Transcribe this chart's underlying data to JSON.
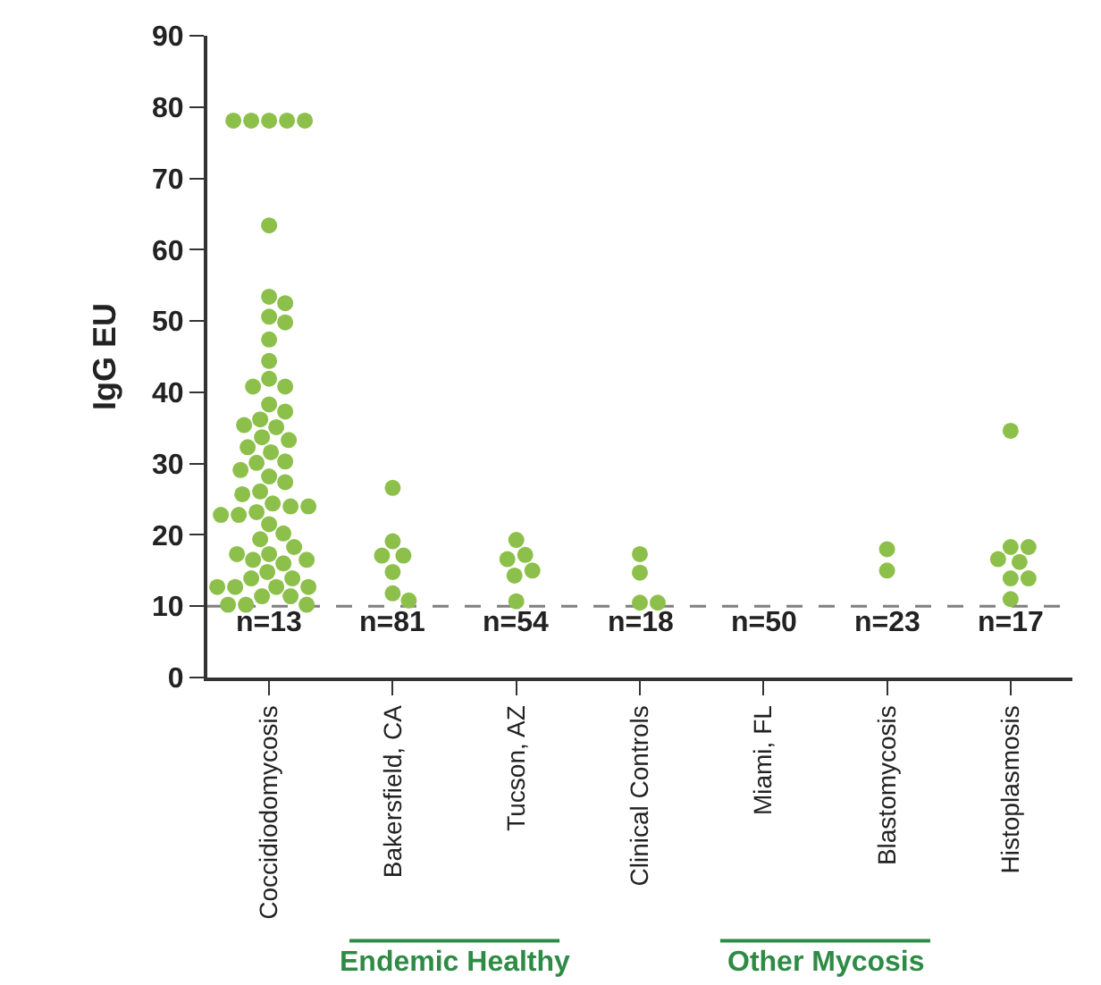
{
  "chart_data": {
    "type": "scatter",
    "ylabel": "IgG EU",
    "categories": [
      "Coccidiodomycosis",
      "Bakersfield, CA",
      "Tucson, AZ",
      "Clinical Controls",
      "Miami, FL",
      "Blastomycosis",
      "Histoplasmosis"
    ],
    "series": [
      {
        "color": "#8dc04a",
        "x": [
          "Coccidiodomycosis",
          "Coccidiodomycosis",
          "Coccidiodomycosis",
          "Coccidiodomycosis",
          "Coccidiodomycosis",
          "Coccidiodomycosis",
          "Coccidiodomycosis",
          "Coccidiodomycosis",
          "Coccidiodomycosis",
          "Coccidiodomycosis",
          "Coccidiodomycosis",
          "Coccidiodomycosis",
          "Coccidiodomycosis",
          "Coccidiodomycosis",
          "Coccidiodomycosis",
          "Coccidiodomycosis",
          "Coccidiodomycosis",
          "Coccidiodomycosis",
          "Coccidiodomycosis",
          "Coccidiodomycosis",
          "Coccidiodomycosis",
          "Coccidiodomycosis",
          "Coccidiodomycosis",
          "Coccidiodomycosis",
          "Coccidiodomycosis",
          "Coccidiodomycosis",
          "Coccidiodomycosis",
          "Coccidiodomycosis",
          "Coccidiodomycosis",
          "Coccidiodomycosis",
          "Coccidiodomycosis",
          "Coccidiodomycosis",
          "Coccidiodomycosis",
          "Coccidiodomycosis",
          "Coccidiodomycosis",
          "Coccidiodomycosis",
          "Coccidiodomycosis",
          "Coccidiodomycosis",
          "Coccidiodomycosis",
          "Coccidiodomycosis",
          "Coccidiodomycosis",
          "Coccidiodomycosis",
          "Coccidiodomycosis",
          "Coccidiodomycosis",
          "Coccidiodomycosis",
          "Coccidiodomycosis",
          "Coccidiodomycosis",
          "Coccidiodomycosis",
          "Coccidiodomycosis",
          "Coccidiodomycosis",
          "Coccidiodomycosis",
          "Coccidiodomycosis",
          "Coccidiodomycosis",
          "Coccidiodomycosis",
          "Coccidiodomycosis",
          "Coccidiodomycosis",
          "Coccidiodomycosis",
          "Coccidiodomycosis",
          "Bakersfield, CA",
          "Bakersfield, CA",
          "Bakersfield, CA",
          "Bakersfield, CA",
          "Bakersfield, CA",
          "Bakersfield, CA",
          "Bakersfield, CA",
          "Tucson, AZ",
          "Tucson, AZ",
          "Tucson, AZ",
          "Tucson, AZ",
          "Tucson, AZ",
          "Tucson, AZ",
          "Clinical Controls",
          "Clinical Controls",
          "Clinical Controls",
          "Clinical Controls",
          "Blastomycosis",
          "Blastomycosis",
          "Histoplasmosis",
          "Histoplasmosis",
          "Histoplasmosis",
          "Histoplasmosis",
          "Histoplasmosis",
          "Histoplasmosis",
          "Histoplasmosis",
          "Histoplasmosis"
        ],
        "values": [
          78.1,
          78.1,
          78.1,
          78.1,
          78.1,
          63.4,
          53.4,
          52.5,
          50.6,
          49.8,
          47.4,
          44.4,
          41.9,
          40.8,
          40.8,
          38.3,
          37.3,
          36.2,
          35.4,
          35.1,
          33.7,
          33.3,
          32.3,
          31.6,
          30.3,
          30.1,
          29.1,
          28.2,
          27.4,
          26.1,
          25.7,
          24.4,
          24.0,
          23.2,
          22.8,
          21.5,
          20.2,
          19.4,
          18.3,
          17.3,
          16.5,
          16.0,
          14.8,
          13.9,
          13.9,
          12.7,
          12.7,
          12.7,
          11.4,
          11.4,
          10.2,
          10.2,
          10.2,
          24.0,
          22.8,
          17.3,
          16.5,
          12.7,
          26.6,
          19.1,
          17.1,
          17.1,
          14.8,
          11.8,
          10.8,
          19.3,
          17.2,
          16.6,
          15.0,
          14.3,
          10.7,
          17.3,
          14.7,
          10.5,
          10.5,
          18.0,
          15.0,
          34.6,
          18.3,
          18.3,
          16.6,
          16.2,
          13.9,
          13.9,
          11.0
        ]
      }
    ],
    "marker": "circle",
    "ylim": [
      0,
      90
    ],
    "yticks": [
      0,
      10,
      20,
      30,
      40,
      50,
      60,
      70,
      80,
      90
    ],
    "grid": false,
    "ref_lines": [
      {
        "axis": "y",
        "value": 10,
        "color": "#7f7f7f",
        "line_style": "dashed"
      }
    ],
    "annotations": [
      "n=13",
      "n=81",
      "n=54",
      "n=18",
      "n=50",
      "n=23",
      "n=17",
      "Endemic Healthy",
      "Other Mycosis"
    ]
  }
}
